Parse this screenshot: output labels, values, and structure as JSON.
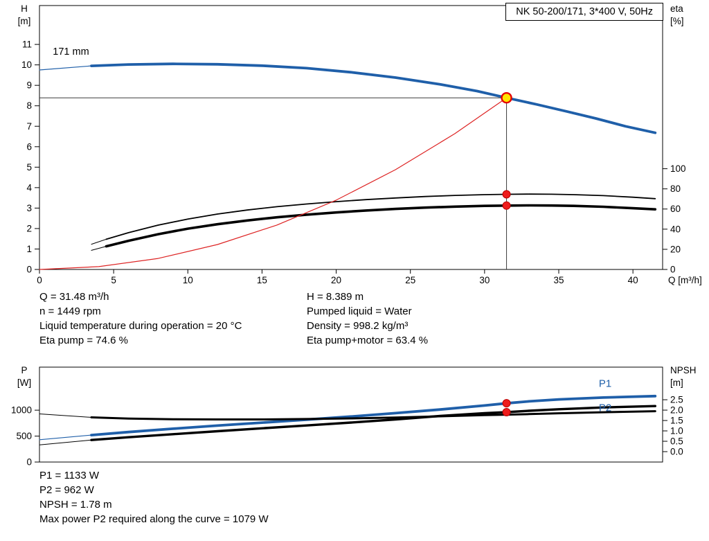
{
  "title_box": {
    "text": "NK 50-200/171, 3*400 V, 50Hz"
  },
  "colors": {
    "curve_blue": "#1f5fa9",
    "curve_black": "#000000",
    "system_red": "#dd2222",
    "marker_red": "#ee1c1c",
    "duty_yellow": "#ffe400",
    "duty_ring": "#e60000",
    "crosshair": "#3a3a3a"
  },
  "chart_data": [
    {
      "name": "qh-chart",
      "type": "line",
      "title": "NK 50-200/171, 3*400 V, 50Hz",
      "axes": {
        "x": {
          "min": 0,
          "max": 42,
          "ticks": [
            "0",
            "5",
            "10",
            "15",
            "20",
            "25",
            "30",
            "35",
            "40"
          ],
          "label": "Q [m³/h]"
        },
        "left": {
          "min": 0,
          "max": 12.9,
          "ticks": [
            "0",
            "1",
            "2",
            "3",
            "4",
            "5",
            "6",
            "7",
            "8",
            "9",
            "10",
            "11"
          ],
          "label_lines": [
            "H",
            "[m]"
          ]
        },
        "right": {
          "min": 0,
          "max": 262,
          "ticks": [
            "0",
            "20",
            "40",
            "60",
            "80",
            "100"
          ],
          "label_lines": [
            "eta",
            "[%]"
          ]
        }
      },
      "crosshair": {
        "x": 31.48,
        "y": 8.389
      },
      "series": [
        {
          "name": "head-curve-171mm",
          "axis": "left",
          "color": "#1f5fa9",
          "width": 3.8,
          "thin_until": 3.5,
          "points": [
            [
              0,
              9.75
            ],
            [
              3.5,
              9.95
            ],
            [
              6,
              10.02
            ],
            [
              9,
              10.05
            ],
            [
              12,
              10.03
            ],
            [
              15,
              9.96
            ],
            [
              18,
              9.84
            ],
            [
              21,
              9.64
            ],
            [
              24,
              9.38
            ],
            [
              27,
              9.05
            ],
            [
              29.5,
              8.72
            ],
            [
              31.48,
              8.389
            ],
            [
              33.5,
              8.07
            ],
            [
              35.5,
              7.73
            ],
            [
              37.5,
              7.38
            ],
            [
              39.5,
              7.0
            ],
            [
              41.5,
              6.68
            ]
          ]
        },
        {
          "name": "eta-pump-curve",
          "axis": "right",
          "color": "#000000",
          "width": 1.8,
          "thin_until": 4.5,
          "points": [
            [
              3.5,
              25
            ],
            [
              4.5,
              30
            ],
            [
              6,
              36.5
            ],
            [
              8,
              44
            ],
            [
              10,
              50
            ],
            [
              12,
              55
            ],
            [
              14,
              59
            ],
            [
              16,
              62.3
            ],
            [
              18,
              65
            ],
            [
              20,
              67.3
            ],
            [
              22,
              69.3
            ],
            [
              24,
              71
            ],
            [
              26,
              72.4
            ],
            [
              28,
              73.5
            ],
            [
              30,
              74.3
            ],
            [
              31.48,
              74.6
            ],
            [
              33,
              74.8
            ],
            [
              34.5,
              74.7
            ],
            [
              36,
              74.3
            ],
            [
              38,
              73.3
            ],
            [
              40,
              71.7
            ],
            [
              41.5,
              70.3
            ]
          ]
        },
        {
          "name": "eta-pump-motor-curve",
          "axis": "right",
          "color": "#000000",
          "width": 3.6,
          "thin_until": 4.5,
          "points": [
            [
              3.5,
              19
            ],
            [
              4.5,
              23
            ],
            [
              6,
              28.5
            ],
            [
              8,
              35
            ],
            [
              10,
              40.5
            ],
            [
              12,
              44.9
            ],
            [
              14,
              48.6
            ],
            [
              16,
              51.8
            ],
            [
              18,
              54.4
            ],
            [
              20,
              56.6
            ],
            [
              22,
              58.5
            ],
            [
              24,
              60.1
            ],
            [
              26,
              61.4
            ],
            [
              28,
              62.4
            ],
            [
              30,
              63.1
            ],
            [
              31.48,
              63.4
            ],
            [
              33,
              63.6
            ],
            [
              34.5,
              63.5
            ],
            [
              36,
              63.1
            ],
            [
              38,
              62.2
            ],
            [
              40,
              60.8
            ],
            [
              41.5,
              59.7
            ]
          ]
        },
        {
          "name": "system-curve",
          "axis": "left",
          "color": "#dd2222",
          "width": 1.2,
          "points": [
            [
              0,
              0
            ],
            [
              4,
              0.14
            ],
            [
              8,
              0.54
            ],
            [
              12,
              1.22
            ],
            [
              16,
              2.17
            ],
            [
              20,
              3.39
            ],
            [
              24,
              4.88
            ],
            [
              28,
              6.64
            ],
            [
              31.48,
              8.389
            ]
          ]
        }
      ],
      "annotations": [
        {
          "name": "impeller-size-label",
          "text": "171 mm",
          "x": 0.9,
          "y": 10.5,
          "axis": "left",
          "color": "#000000",
          "size": 14.5
        }
      ],
      "markers": [
        {
          "name": "duty-point",
          "x": 31.48,
          "y": 8.389,
          "axis": "left",
          "style": "duty"
        },
        {
          "name": "eta-pump-point",
          "x": 31.48,
          "y": 74.6,
          "axis": "right",
          "style": "dot"
        },
        {
          "name": "eta-pump-motor-point",
          "x": 31.48,
          "y": 63.4,
          "axis": "right",
          "style": "dot"
        }
      ]
    },
    {
      "name": "power-npsh-chart",
      "type": "line",
      "title": "",
      "axes": {
        "x": {
          "min": 0,
          "max": 42,
          "ticks": [],
          "label": ""
        },
        "left": {
          "min": 0,
          "max": 1830,
          "ticks": [
            "0",
            "500",
            "1000"
          ],
          "label_lines": [
            "P",
            "[W]"
          ]
        },
        "right": {
          "min": -0.5,
          "max": 4.07,
          "ticks": [
            "0.0",
            "0.5",
            "1.0",
            "1.5",
            "2.0",
            "2.5"
          ],
          "label_lines": [
            "NPSH",
            "[m]"
          ]
        }
      },
      "series": [
        {
          "name": "p1-curve",
          "axis": "left",
          "color": "#1f5fa9",
          "width": 3.8,
          "thin_until": 3.5,
          "points": [
            [
              0,
              430
            ],
            [
              3.5,
              520
            ],
            [
              6,
              578
            ],
            [
              9,
              642
            ],
            [
              12,
              702
            ],
            [
              15,
              760
            ],
            [
              18,
              818
            ],
            [
              21,
              878
            ],
            [
              24,
              943
            ],
            [
              27,
              1013
            ],
            [
              30,
              1090
            ],
            [
              31.48,
              1133
            ],
            [
              33,
              1170
            ],
            [
              35,
              1207
            ],
            [
              38,
              1243
            ],
            [
              41.5,
              1272
            ]
          ]
        },
        {
          "name": "p2-curve",
          "axis": "left",
          "color": "#000000",
          "width": 3.4,
          "thin_until": 3.5,
          "points": [
            [
              0,
              330
            ],
            [
              3.5,
              425
            ],
            [
              6,
              478
            ],
            [
              9,
              537
            ],
            [
              12,
              594
            ],
            [
              15,
              650
            ],
            [
              18,
              705
            ],
            [
              21,
              762
            ],
            [
              24,
              822
            ],
            [
              27,
              888
            ],
            [
              30,
              942
            ],
            [
              31.48,
              962
            ],
            [
              33,
              988
            ],
            [
              35,
              1018
            ],
            [
              38,
              1052
            ],
            [
              41.5,
              1079
            ]
          ]
        },
        {
          "name": "npsh-curve",
          "axis": "right",
          "color": "#000000",
          "width": 3.0,
          "thin_until": 3.5,
          "points": [
            [
              0,
              1.82
            ],
            [
              3.5,
              1.65
            ],
            [
              6,
              1.59
            ],
            [
              9,
              1.56
            ],
            [
              12,
              1.55
            ],
            [
              15,
              1.55
            ],
            [
              18,
              1.57
            ],
            [
              21,
              1.6
            ],
            [
              24,
              1.64
            ],
            [
              27,
              1.7
            ],
            [
              30,
              1.76
            ],
            [
              31.48,
              1.78
            ],
            [
              33,
              1.81
            ],
            [
              35,
              1.85
            ],
            [
              38,
              1.9
            ],
            [
              41.5,
              1.95
            ]
          ]
        }
      ],
      "labels": [
        {
          "name": "p1-curve-label",
          "text": "P1",
          "x": 37.7,
          "y": 1450,
          "axis": "left",
          "color": "#1f5fa9",
          "size": 15
        },
        {
          "name": "p2-curve-label",
          "text": "P2",
          "x": 37.7,
          "y": 985,
          "axis": "left",
          "color": "#1f5fa9",
          "size": 15
        }
      ],
      "markers": [
        {
          "name": "p1-point",
          "x": 31.48,
          "y": 1133,
          "axis": "left",
          "style": "dot"
        },
        {
          "name": "p2-point",
          "x": 31.48,
          "y": 962,
          "axis": "left",
          "style": "dot"
        }
      ]
    }
  ],
  "info_top": {
    "left": [
      "Q = 31.48 m³/h",
      "n = 1449 rpm",
      "Liquid temperature during operation = 20 °C",
      "Eta pump = 74.6 %"
    ],
    "right": [
      "H = 8.389 m",
      "Pumped liquid = Water",
      "Density = 998.2 kg/m³",
      "Eta pump+motor = 63.4 %"
    ]
  },
  "info_bottom": [
    "P1 = 1133 W",
    "P2 = 962 W",
    "NPSH = 1.78 m",
    "Max power P2 required along the curve = 1079 W"
  ]
}
